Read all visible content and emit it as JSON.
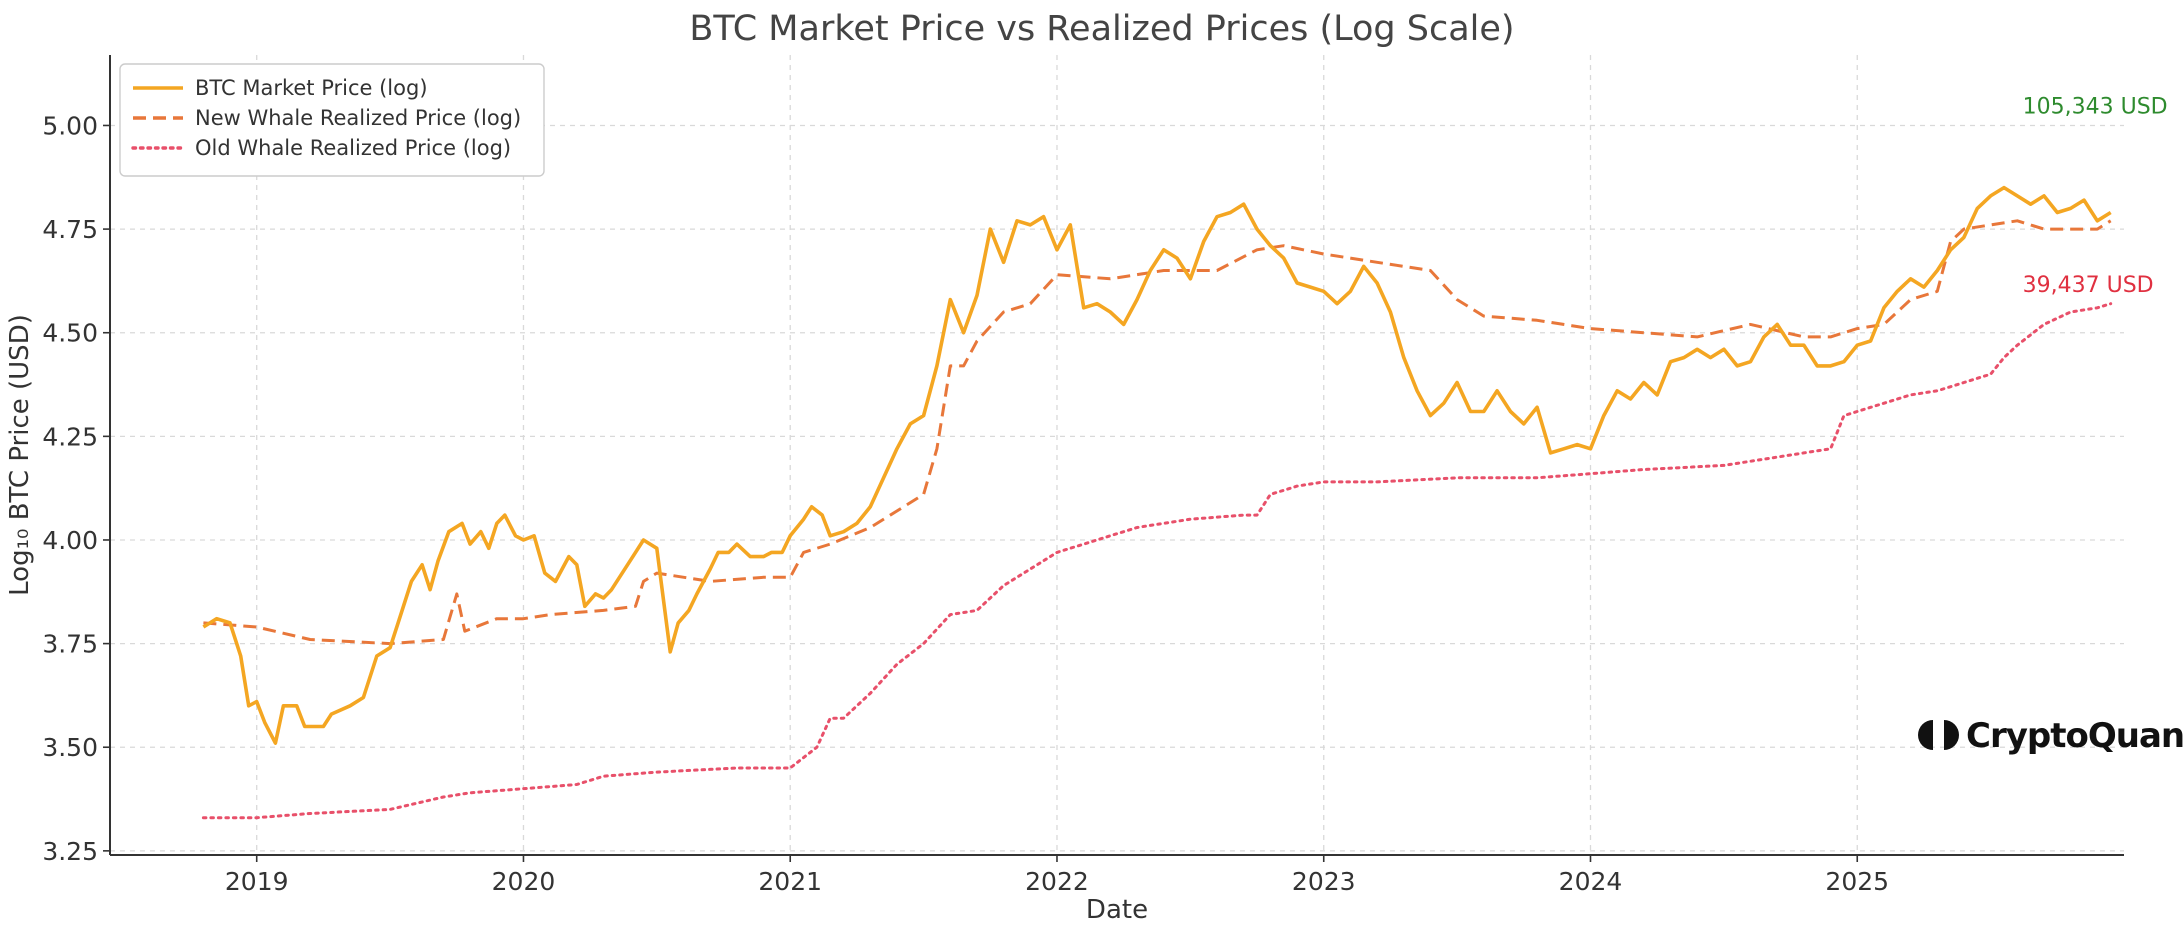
{
  "chart_data": {
    "type": "line",
    "title": "BTC Market Price vs Realized Prices (Log Scale)",
    "xlabel": "Date",
    "ylabel": "Log₁₀ BTC Price (USD)",
    "xlim": [
      2018.45,
      2026.0
    ],
    "ylim": [
      3.24,
      5.17
    ],
    "x_ticks": [
      {
        "value": 2019,
        "label": "2019"
      },
      {
        "value": 2020,
        "label": "2020"
      },
      {
        "value": 2021,
        "label": "2021"
      },
      {
        "value": 2022,
        "label": "2022"
      },
      {
        "value": 2023,
        "label": "2023"
      },
      {
        "value": 2024,
        "label": "2024"
      },
      {
        "value": 2025,
        "label": "2025"
      }
    ],
    "y_ticks": [
      {
        "value": 3.25,
        "label": "3.25"
      },
      {
        "value": 3.5,
        "label": "3.50"
      },
      {
        "value": 3.75,
        "label": "3.75"
      },
      {
        "value": 4.0,
        "label": "4.00"
      },
      {
        "value": 4.25,
        "label": "4.25"
      },
      {
        "value": 4.5,
        "label": "4.50"
      },
      {
        "value": 4.75,
        "label": "4.75"
      },
      {
        "value": 5.0,
        "label": "5.00"
      }
    ],
    "grid": true,
    "legend_position": "top-left",
    "series": [
      {
        "name": "BTC Market Price (log)",
        "color": "#f4a622",
        "style": "solid",
        "points": [
          [
            2018.8,
            3.79
          ],
          [
            2018.85,
            3.81
          ],
          [
            2018.9,
            3.8
          ],
          [
            2018.94,
            3.72
          ],
          [
            2018.97,
            3.6
          ],
          [
            2019.0,
            3.61
          ],
          [
            2019.03,
            3.56
          ],
          [
            2019.07,
            3.51
          ],
          [
            2019.1,
            3.6
          ],
          [
            2019.15,
            3.6
          ],
          [
            2019.18,
            3.55
          ],
          [
            2019.25,
            3.55
          ],
          [
            2019.28,
            3.58
          ],
          [
            2019.35,
            3.6
          ],
          [
            2019.4,
            3.62
          ],
          [
            2019.45,
            3.72
          ],
          [
            2019.5,
            3.74
          ],
          [
            2019.53,
            3.8
          ],
          [
            2019.58,
            3.9
          ],
          [
            2019.62,
            3.94
          ],
          [
            2019.65,
            3.88
          ],
          [
            2019.68,
            3.95
          ],
          [
            2019.72,
            4.02
          ],
          [
            2019.77,
            4.04
          ],
          [
            2019.8,
            3.99
          ],
          [
            2019.84,
            4.02
          ],
          [
            2019.87,
            3.98
          ],
          [
            2019.9,
            4.04
          ],
          [
            2019.93,
            4.06
          ],
          [
            2019.97,
            4.01
          ],
          [
            2020.0,
            4.0
          ],
          [
            2020.04,
            4.01
          ],
          [
            2020.08,
            3.92
          ],
          [
            2020.12,
            3.9
          ],
          [
            2020.17,
            3.96
          ],
          [
            2020.2,
            3.94
          ],
          [
            2020.23,
            3.84
          ],
          [
            2020.27,
            3.87
          ],
          [
            2020.3,
            3.86
          ],
          [
            2020.33,
            3.88
          ],
          [
            2020.4,
            3.95
          ],
          [
            2020.45,
            4.0
          ],
          [
            2020.5,
            3.98
          ],
          [
            2020.55,
            3.73
          ],
          [
            2020.58,
            3.8
          ],
          [
            2020.62,
            3.83
          ],
          [
            2020.65,
            3.87
          ],
          [
            2020.7,
            3.93
          ],
          [
            2020.73,
            3.97
          ],
          [
            2020.77,
            3.97
          ],
          [
            2020.8,
            3.99
          ],
          [
            2020.85,
            3.96
          ],
          [
            2020.9,
            3.96
          ],
          [
            2020.93,
            3.97
          ],
          [
            2020.97,
            3.97
          ],
          [
            2021.0,
            4.01
          ],
          [
            2021.05,
            4.05
          ],
          [
            2021.08,
            4.08
          ],
          [
            2021.12,
            4.06
          ],
          [
            2021.15,
            4.01
          ],
          [
            2021.2,
            4.02
          ],
          [
            2021.25,
            4.04
          ],
          [
            2021.3,
            4.08
          ],
          [
            2021.35,
            4.15
          ],
          [
            2021.4,
            4.22
          ],
          [
            2021.45,
            4.28
          ],
          [
            2021.5,
            4.3
          ],
          [
            2021.55,
            4.42
          ],
          [
            2021.6,
            4.58
          ],
          [
            2021.65,
            4.5
          ],
          [
            2021.7,
            4.59
          ],
          [
            2021.75,
            4.75
          ],
          [
            2021.8,
            4.67
          ],
          [
            2021.85,
            4.77
          ],
          [
            2021.9,
            4.76
          ],
          [
            2021.95,
            4.78
          ],
          [
            2022.0,
            4.7
          ],
          [
            2022.05,
            4.76
          ],
          [
            2022.1,
            4.56
          ],
          [
            2022.15,
            4.57
          ],
          [
            2022.2,
            4.55
          ],
          [
            2022.25,
            4.52
          ],
          [
            2022.3,
            4.58
          ],
          [
            2022.35,
            4.65
          ],
          [
            2022.4,
            4.7
          ],
          [
            2022.45,
            4.68
          ],
          [
            2022.5,
            4.63
          ],
          [
            2022.55,
            4.72
          ],
          [
            2022.6,
            4.78
          ],
          [
            2022.65,
            4.79
          ],
          [
            2022.7,
            4.81
          ],
          [
            2022.75,
            4.75
          ],
          [
            2022.8,
            4.71
          ],
          [
            2022.85,
            4.68
          ],
          [
            2022.9,
            4.62
          ],
          [
            2022.95,
            4.61
          ],
          [
            2023.0,
            4.6
          ],
          [
            2023.05,
            4.57
          ],
          [
            2023.1,
            4.6
          ],
          [
            2023.15,
            4.66
          ],
          [
            2023.2,
            4.62
          ],
          [
            2023.25,
            4.55
          ],
          [
            2023.3,
            4.44
          ],
          [
            2023.35,
            4.36
          ],
          [
            2023.4,
            4.3
          ],
          [
            2023.45,
            4.33
          ],
          [
            2023.5,
            4.38
          ],
          [
            2023.55,
            4.31
          ],
          [
            2023.6,
            4.31
          ],
          [
            2023.65,
            4.36
          ],
          [
            2023.7,
            4.31
          ],
          [
            2023.75,
            4.28
          ],
          [
            2023.8,
            4.32
          ],
          [
            2023.85,
            4.21
          ],
          [
            2023.9,
            4.22
          ],
          [
            2023.95,
            4.23
          ],
          [
            2024.0,
            4.22
          ],
          [
            2024.05,
            4.3
          ],
          [
            2024.1,
            4.36
          ],
          [
            2024.15,
            4.34
          ],
          [
            2024.2,
            4.38
          ],
          [
            2024.25,
            4.35
          ],
          [
            2024.3,
            4.43
          ],
          [
            2024.35,
            4.44
          ],
          [
            2024.4,
            4.46
          ],
          [
            2024.45,
            4.44
          ],
          [
            2024.5,
            4.46
          ],
          [
            2024.55,
            4.42
          ],
          [
            2024.6,
            4.43
          ],
          [
            2024.65,
            4.49
          ],
          [
            2024.7,
            4.52
          ],
          [
            2024.75,
            4.47
          ],
          [
            2024.8,
            4.47
          ],
          [
            2024.85,
            4.42
          ],
          [
            2024.9,
            4.42
          ],
          [
            2024.95,
            4.43
          ],
          [
            2025.0,
            4.47
          ],
          [
            2025.05,
            4.48
          ],
          [
            2025.1,
            4.56
          ],
          [
            2025.15,
            4.6
          ],
          [
            2025.2,
            4.63
          ],
          [
            2025.25,
            4.61
          ],
          [
            2025.3,
            4.65
          ],
          [
            2025.35,
            4.7
          ],
          [
            2025.4,
            4.73
          ],
          [
            2025.45,
            4.8
          ],
          [
            2025.5,
            4.83
          ],
          [
            2025.55,
            4.85
          ],
          [
            2025.6,
            4.83
          ],
          [
            2025.65,
            4.81
          ],
          [
            2025.7,
            4.83
          ],
          [
            2025.75,
            4.79
          ],
          [
            2025.8,
            4.8
          ],
          [
            2025.85,
            4.82
          ],
          [
            2025.9,
            4.77
          ],
          [
            2025.95,
            4.79
          ]
        ]
      },
      {
        "name": "New Whale Realized Price (log)",
        "color": "#e8773a",
        "style": "dashed",
        "points": [
          [
            2018.8,
            3.8
          ],
          [
            2019.0,
            3.79
          ],
          [
            2019.2,
            3.76
          ],
          [
            2019.5,
            3.75
          ],
          [
            2019.7,
            3.76
          ],
          [
            2019.75,
            3.87
          ],
          [
            2019.78,
            3.78
          ],
          [
            2019.9,
            3.81
          ],
          [
            2020.0,
            3.81
          ],
          [
            2020.1,
            3.82
          ],
          [
            2020.3,
            3.83
          ],
          [
            2020.42,
            3.84
          ],
          [
            2020.45,
            3.9
          ],
          [
            2020.5,
            3.92
          ],
          [
            2020.7,
            3.9
          ],
          [
            2020.9,
            3.91
          ],
          [
            2021.0,
            3.91
          ],
          [
            2021.05,
            3.97
          ],
          [
            2021.15,
            3.99
          ],
          [
            2021.3,
            4.03
          ],
          [
            2021.4,
            4.07
          ],
          [
            2021.5,
            4.11
          ],
          [
            2021.55,
            4.22
          ],
          [
            2021.6,
            4.42
          ],
          [
            2021.65,
            4.42
          ],
          [
            2021.7,
            4.48
          ],
          [
            2021.8,
            4.55
          ],
          [
            2021.9,
            4.57
          ],
          [
            2022.0,
            4.64
          ],
          [
            2022.2,
            4.63
          ],
          [
            2022.4,
            4.65
          ],
          [
            2022.6,
            4.65
          ],
          [
            2022.75,
            4.7
          ],
          [
            2022.85,
            4.71
          ],
          [
            2023.0,
            4.69
          ],
          [
            2023.2,
            4.67
          ],
          [
            2023.4,
            4.65
          ],
          [
            2023.5,
            4.58
          ],
          [
            2023.6,
            4.54
          ],
          [
            2023.8,
            4.53
          ],
          [
            2024.0,
            4.51
          ],
          [
            2024.2,
            4.5
          ],
          [
            2024.4,
            4.49
          ],
          [
            2024.6,
            4.52
          ],
          [
            2024.8,
            4.49
          ],
          [
            2024.9,
            4.49
          ],
          [
            2025.0,
            4.51
          ],
          [
            2025.1,
            4.52
          ],
          [
            2025.2,
            4.58
          ],
          [
            2025.3,
            4.6
          ],
          [
            2025.35,
            4.72
          ],
          [
            2025.4,
            4.75
          ],
          [
            2025.5,
            4.76
          ],
          [
            2025.6,
            4.77
          ],
          [
            2025.7,
            4.75
          ],
          [
            2025.8,
            4.75
          ],
          [
            2025.9,
            4.75
          ],
          [
            2025.95,
            4.77
          ]
        ]
      },
      {
        "name": "Old Whale Realized Price (log)",
        "color": "#e8506a",
        "style": "dotted",
        "points": [
          [
            2018.8,
            3.33
          ],
          [
            2019.0,
            3.33
          ],
          [
            2019.2,
            3.34
          ],
          [
            2019.5,
            3.35
          ],
          [
            2019.7,
            3.38
          ],
          [
            2019.8,
            3.39
          ],
          [
            2020.0,
            3.4
          ],
          [
            2020.2,
            3.41
          ],
          [
            2020.3,
            3.43
          ],
          [
            2020.5,
            3.44
          ],
          [
            2020.8,
            3.45
          ],
          [
            2021.0,
            3.45
          ],
          [
            2021.1,
            3.5
          ],
          [
            2021.15,
            3.57
          ],
          [
            2021.2,
            3.57
          ],
          [
            2021.3,
            3.63
          ],
          [
            2021.4,
            3.7
          ],
          [
            2021.5,
            3.75
          ],
          [
            2021.6,
            3.82
          ],
          [
            2021.7,
            3.83
          ],
          [
            2021.8,
            3.89
          ],
          [
            2021.9,
            3.93
          ],
          [
            2022.0,
            3.97
          ],
          [
            2022.1,
            3.99
          ],
          [
            2022.2,
            4.01
          ],
          [
            2022.3,
            4.03
          ],
          [
            2022.5,
            4.05
          ],
          [
            2022.7,
            4.06
          ],
          [
            2022.75,
            4.06
          ],
          [
            2022.8,
            4.11
          ],
          [
            2022.9,
            4.13
          ],
          [
            2023.0,
            4.14
          ],
          [
            2023.2,
            4.14
          ],
          [
            2023.5,
            4.15
          ],
          [
            2023.8,
            4.15
          ],
          [
            2024.0,
            4.16
          ],
          [
            2024.2,
            4.17
          ],
          [
            2024.5,
            4.18
          ],
          [
            2024.7,
            4.2
          ],
          [
            2024.8,
            4.21
          ],
          [
            2024.9,
            4.22
          ],
          [
            2024.95,
            4.3
          ],
          [
            2025.0,
            4.31
          ],
          [
            2025.2,
            4.35
          ],
          [
            2025.3,
            4.36
          ],
          [
            2025.4,
            4.38
          ],
          [
            2025.5,
            4.4
          ],
          [
            2025.55,
            4.44
          ],
          [
            2025.6,
            4.47
          ],
          [
            2025.7,
            4.52
          ],
          [
            2025.8,
            4.55
          ],
          [
            2025.9,
            4.56
          ],
          [
            2025.95,
            4.57
          ]
        ]
      }
    ],
    "annotations": [
      {
        "text": "105,343 USD",
        "x": 2025.62,
        "y": 5.048,
        "color": "#2e8b2e"
      },
      {
        "text": "39,437 USD",
        "x": 2025.62,
        "y": 4.617,
        "color": "#e03040"
      }
    ],
    "watermark": "CryptoQuant"
  }
}
